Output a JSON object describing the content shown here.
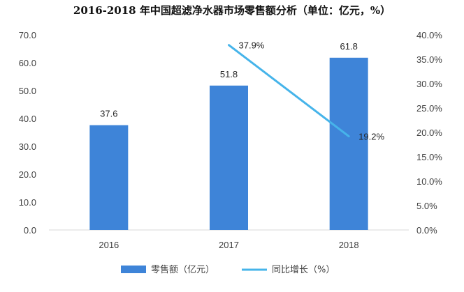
{
  "chart_data": {
    "type": "bar",
    "title": "2016-2018 年中国超滤净水器市场零售额分析（单位：亿元，%）",
    "categories": [
      "2016",
      "2017",
      "2018"
    ],
    "series": [
      {
        "name": "零售额（亿元）",
        "type": "bar",
        "axis": "left",
        "values": [
          37.6,
          51.8,
          61.8
        ],
        "labels": [
          "37.6",
          "51.8",
          "61.8"
        ],
        "color": "#3e84d8"
      },
      {
        "name": "同比增长（%）",
        "type": "line",
        "axis": "right",
        "values": [
          null,
          37.9,
          19.2
        ],
        "labels": [
          "",
          "37.9%",
          "19.2%"
        ],
        "color": "#46b4ea"
      }
    ],
    "y_left": {
      "ylim": [
        0,
        70
      ],
      "ticks": [
        "0.0",
        "10.0",
        "20.0",
        "30.0",
        "40.0",
        "50.0",
        "60.0",
        "70.0"
      ]
    },
    "y_right": {
      "ylim": [
        0,
        40
      ],
      "ticks": [
        "0.0%",
        "5.0%",
        "10.0%",
        "15.0%",
        "20.0%",
        "25.0%",
        "30.0%",
        "35.0%",
        "40.0%"
      ]
    },
    "grid": false,
    "legend": "bottom"
  }
}
